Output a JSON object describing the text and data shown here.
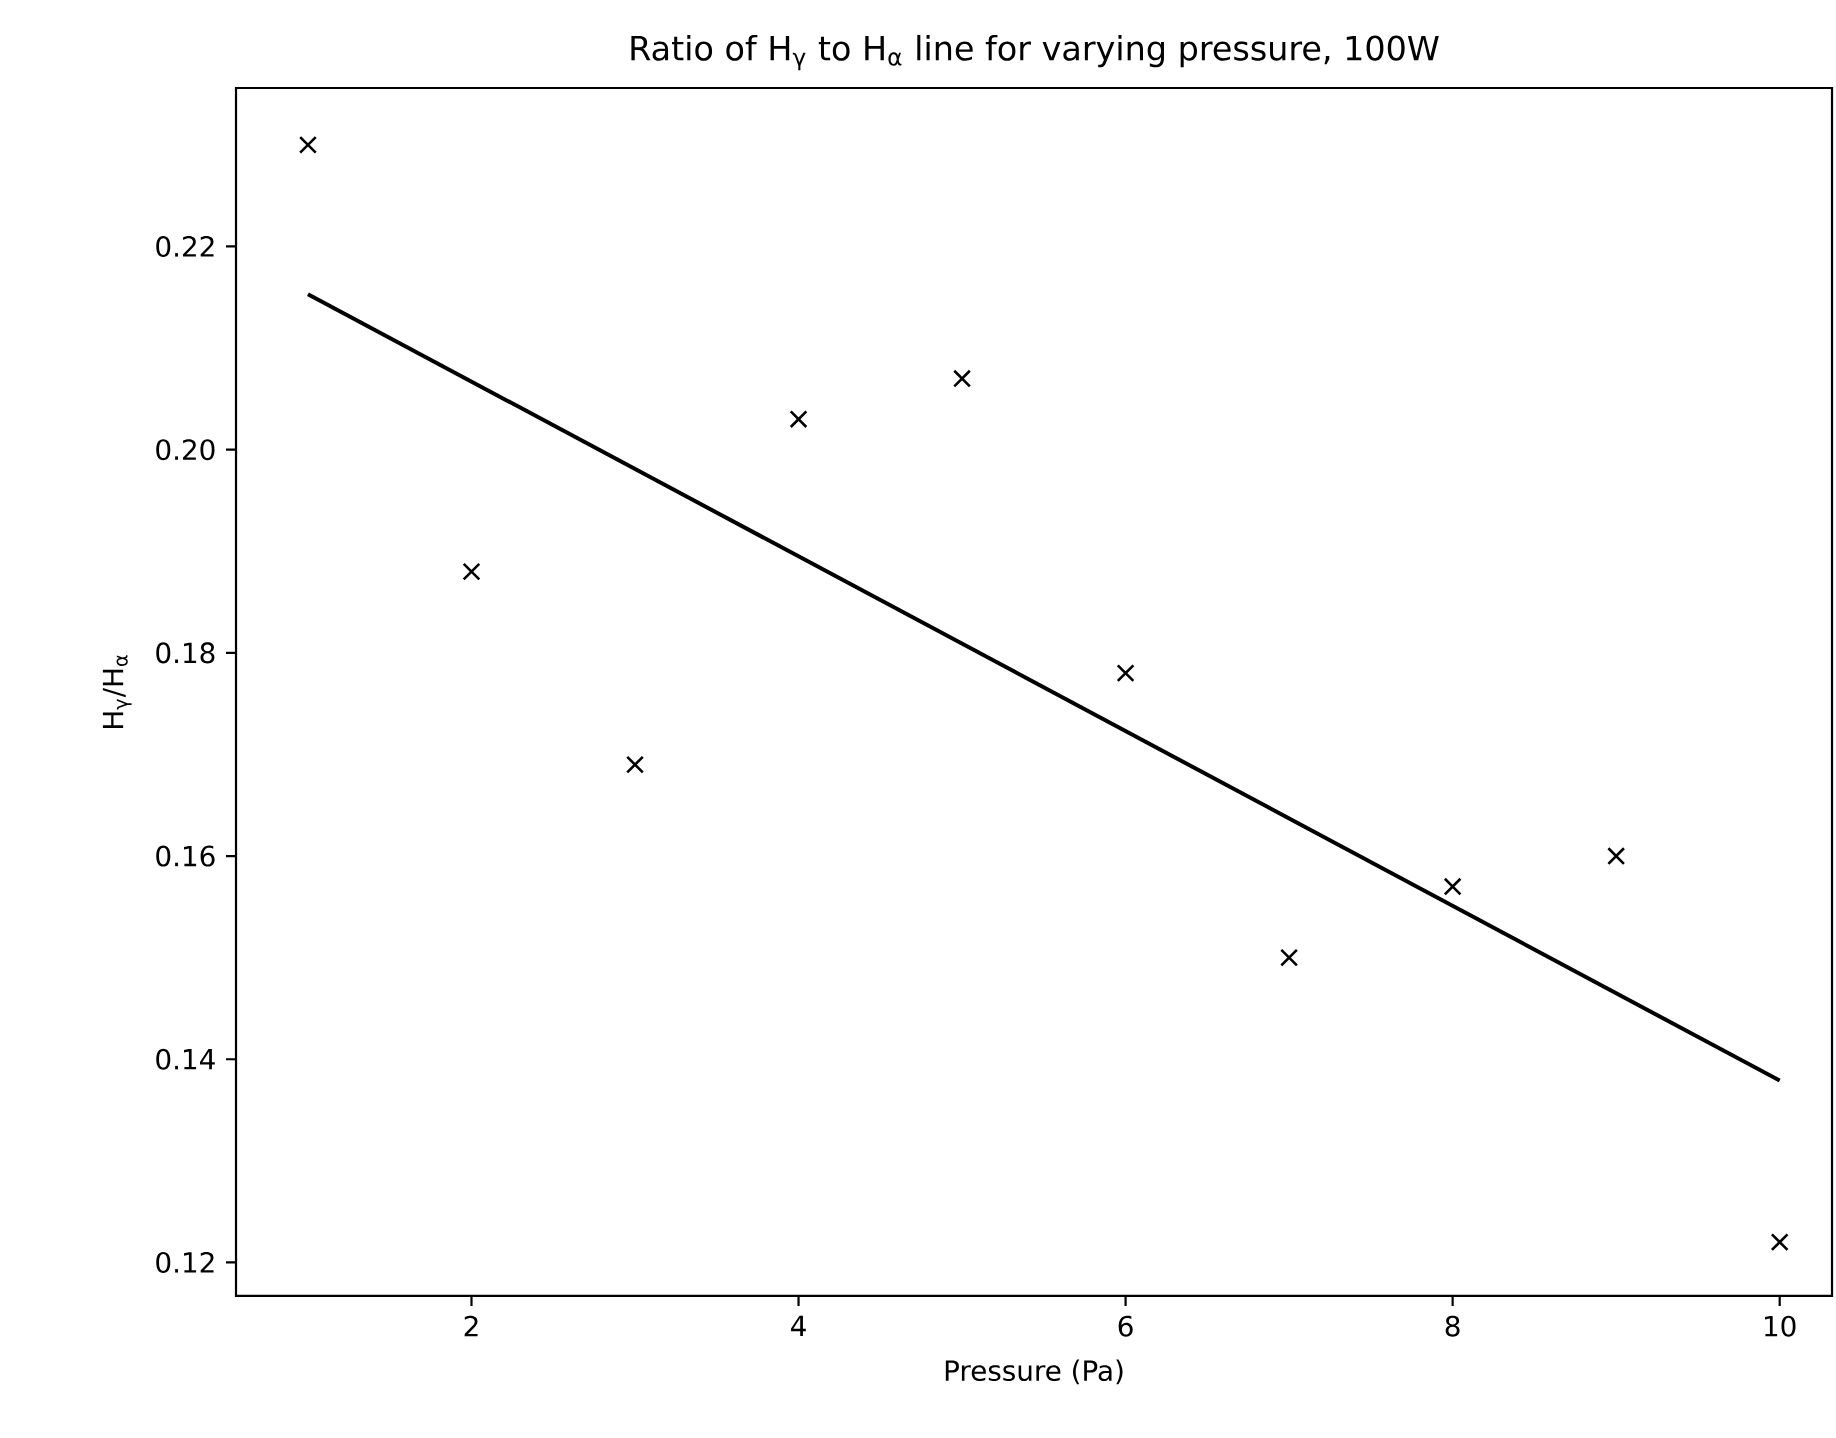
{
  "chart_data": {
    "type": "scatter",
    "title": "Ratio of H$_{γ}$ to H$_{α}$ line for varying pressure, 100W",
    "xlabel": "Pressure (Pa)",
    "ylabel": "H$_{γ}$/H$_{α}$",
    "series": [
      {
        "color": "#000000",
        "marker": "cross",
        "x": [
          1,
          2,
          3,
          4,
          5,
          6,
          7,
          8,
          9,
          10
        ],
        "values": [
          0.23,
          0.188,
          0.169,
          0.203,
          0.207,
          0.178,
          0.15,
          0.157,
          0.16,
          0.122
        ]
      },
      {
        "type": "line",
        "color": "#000000",
        "marker": "none",
        "line_style": "solid",
        "x": [
          1,
          10
        ],
        "values": [
          0.2153,
          0.1379
        ]
      }
    ],
    "xlim": [
      0.56,
      10.32
    ],
    "ylim": [
      0.1167,
      0.2356
    ],
    "xticks": [
      2,
      4,
      6,
      8,
      10
    ],
    "yticks": [
      0.12,
      0.14,
      0.16,
      0.18,
      {
        "value": 0.2,
        "label": "0.20"
      },
      0.22
    ]
  }
}
